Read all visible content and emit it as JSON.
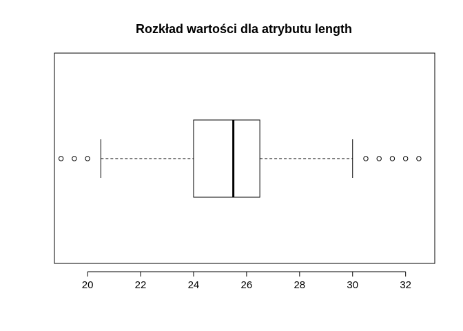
{
  "chart_data": {
    "type": "boxplot",
    "orientation": "horizontal",
    "title": "Rozkład wartości dla atrybutu length",
    "xlabel": "",
    "ylabel": "",
    "xlim": [
      18.75,
      33.1
    ],
    "x_ticks": [
      20,
      22,
      24,
      26,
      28,
      30,
      32
    ],
    "x_tick_labels": [
      "20",
      "22",
      "24",
      "26",
      "28",
      "30",
      "32"
    ],
    "grid": false,
    "box": {
      "whisker_low": 20.5,
      "q1": 24,
      "median": 25.5,
      "q3": 26.5,
      "whisker_high": 30
    },
    "outliers": [
      19,
      19.5,
      20,
      30.5,
      31,
      31.5,
      32,
      32.5
    ]
  }
}
